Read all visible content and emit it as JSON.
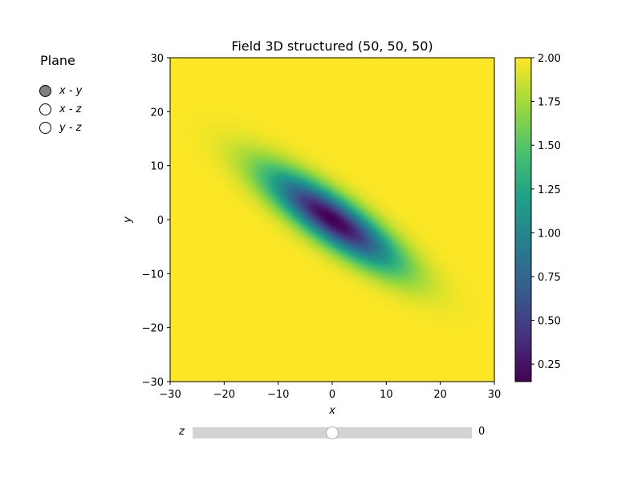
{
  "plane_selector": {
    "title": "Plane",
    "options": [
      "x - y",
      "x - z",
      "y - z"
    ],
    "selected_index": 0
  },
  "slider": {
    "label": "z",
    "value": "0",
    "min": -30,
    "max": 30,
    "current": 0
  },
  "chart_data": {
    "type": "heatmap",
    "title": "Field 3D structured (50, 50, 50)",
    "xlabel": "x",
    "ylabel": "y",
    "xlim": [
      -30,
      30
    ],
    "ylim": [
      -30,
      30
    ],
    "x_ticks": [
      "−30",
      "−20",
      "−10",
      "0",
      "10",
      "20",
      "30"
    ],
    "y_ticks": [
      "−30",
      "−20",
      "−10",
      "0",
      "10",
      "20",
      "30"
    ],
    "grid": false,
    "colormap": "viridis",
    "colorbar": {
      "min": 0.15,
      "max": 2.0,
      "ticks": [
        "0.25",
        "0.50",
        "0.75",
        "1.00",
        "1.25",
        "1.50",
        "1.75",
        "2.00"
      ]
    },
    "field": {
      "shape": "elongated gaussian well",
      "center": [
        0,
        0
      ],
      "baseline": 2.0,
      "minimum": 0.15,
      "orientation_deg": -35,
      "sigma_major": 10,
      "sigma_minor": 2.8
    },
    "colors": {
      "background": "#fde725",
      "low": "#440154",
      "mid": "#21918c"
    }
  }
}
